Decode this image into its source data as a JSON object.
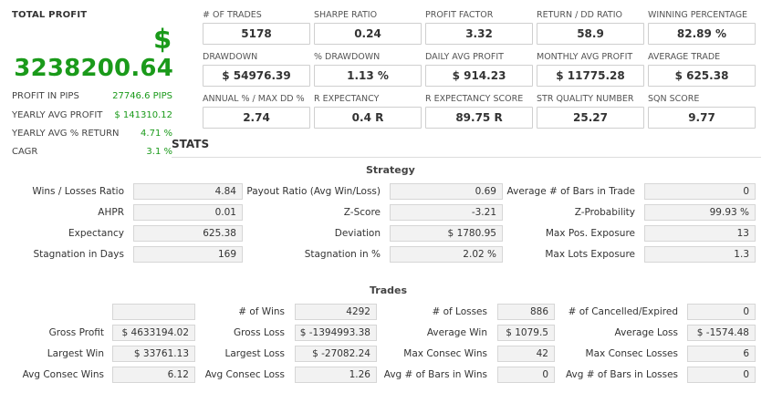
{
  "summary": {
    "total_profit_label": "TOTAL PROFIT",
    "currency_symbol": "$",
    "total_profit_value": "3238200.64",
    "rows": [
      {
        "label": "PROFIT IN PIPS",
        "value": "27746.6 PIPS"
      },
      {
        "label": "YEARLY AVG PROFIT",
        "value": "$ 141310.12"
      },
      {
        "label": "YEARLY AVG % RETURN",
        "value": "4.71 %"
      },
      {
        "label": "CAGR",
        "value": "3.1 %"
      }
    ]
  },
  "metrics": [
    {
      "label": "# OF TRADES",
      "value": "5178"
    },
    {
      "label": "SHARPE RATIO",
      "value": "0.24"
    },
    {
      "label": "PROFIT FACTOR",
      "value": "3.32"
    },
    {
      "label": "RETURN / DD RATIO",
      "value": "58.9"
    },
    {
      "label": "WINNING PERCENTAGE",
      "value": "82.89 %"
    },
    {
      "label": "DRAWDOWN",
      "value": "$ 54976.39"
    },
    {
      "label": "% DRAWDOWN",
      "value": "1.13 %"
    },
    {
      "label": "DAILY AVG PROFIT",
      "value": "$ 914.23"
    },
    {
      "label": "MONTHLY AVG PROFIT",
      "value": "$ 11775.28"
    },
    {
      "label": "AVERAGE TRADE",
      "value": "$ 625.38"
    },
    {
      "label": "ANNUAL % / MAX DD %",
      "value": "2.74"
    },
    {
      "label": "R EXPECTANCY",
      "value": "0.4 R"
    },
    {
      "label": "R EXPECTANCY SCORE",
      "value": "89.75 R"
    },
    {
      "label": "STR QUALITY NUMBER",
      "value": "25.27"
    },
    {
      "label": "SQN SCORE",
      "value": "9.77"
    }
  ],
  "stats_title": "STATS",
  "strategy": {
    "title": "Strategy",
    "rows": [
      [
        {
          "label": "Wins / Losses Ratio",
          "value": "4.84"
        },
        {
          "label": "Payout Ratio (Avg Win/Loss)",
          "value": "0.69"
        },
        {
          "label": "Average # of Bars in Trade",
          "value": "0"
        }
      ],
      [
        {
          "label": "AHPR",
          "value": "0.01"
        },
        {
          "label": "Z-Score",
          "value": "-3.21"
        },
        {
          "label": "Z-Probability",
          "value": "99.93 %"
        }
      ],
      [
        {
          "label": "Expectancy",
          "value": "625.38"
        },
        {
          "label": "Deviation",
          "value": "$ 1780.95"
        },
        {
          "label": "Max Pos. Exposure",
          "value": "13"
        }
      ],
      [
        {
          "label": "Stagnation in Days",
          "value": "169"
        },
        {
          "label": "Stagnation in %",
          "value": "2.02 %"
        },
        {
          "label": "Max Lots Exposure",
          "value": "1.3"
        }
      ]
    ]
  },
  "trades": {
    "title": "Trades",
    "rows": [
      [
        {
          "label": "",
          "value": ""
        },
        {
          "label": "# of Wins",
          "value": "4292"
        },
        {
          "label": "# of Losses",
          "value": "886"
        },
        {
          "label": "# of Cancelled/Expired",
          "value": "0"
        }
      ],
      [
        {
          "label": "Gross Profit",
          "value": "$ 4633194.02"
        },
        {
          "label": "Gross Loss",
          "value": "$ -1394993.38"
        },
        {
          "label": "Average Win",
          "value": "$ 1079.5"
        },
        {
          "label": "Average Loss",
          "value": "$ -1574.48"
        }
      ],
      [
        {
          "label": "Largest Win",
          "value": "$ 33761.13"
        },
        {
          "label": "Largest Loss",
          "value": "$ -27082.24"
        },
        {
          "label": "Max Consec Wins",
          "value": "42"
        },
        {
          "label": "Max Consec Losses",
          "value": "6"
        }
      ],
      [
        {
          "label": "Avg Consec Wins",
          "value": "6.12"
        },
        {
          "label": "Avg Consec Loss",
          "value": "1.26"
        },
        {
          "label": "Avg # of Bars in Wins",
          "value": "0"
        },
        {
          "label": "Avg # of Bars in Losses",
          "value": "0"
        }
      ]
    ]
  }
}
